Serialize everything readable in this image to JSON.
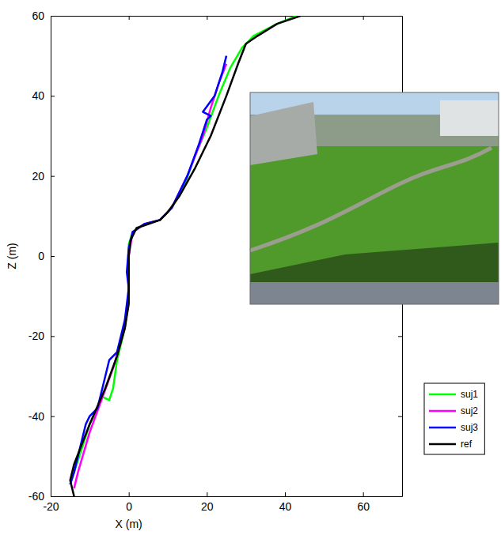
{
  "chart_data": {
    "type": "line",
    "x_label": "X (m)",
    "y_label": "Z (m)",
    "xlim": [
      -20,
      70
    ],
    "ylim": [
      -60,
      60
    ],
    "xticks": [
      -20,
      0,
      20,
      40,
      60
    ],
    "yticks": [
      -60,
      -40,
      -20,
      0,
      20,
      40,
      60
    ],
    "legend": "right",
    "series": [
      {
        "name": "suj1",
        "color": "#00ff00",
        "x": [
          -15,
          -14,
          -12,
          -10,
          -8,
          -7,
          -5,
          -4,
          -3,
          -1,
          0,
          0,
          0,
          1,
          4,
          8,
          11,
          14,
          17,
          20,
          23,
          26,
          29,
          32,
          38,
          43
        ],
        "values": [
          -57,
          -54,
          -48,
          -42,
          -38,
          -35,
          -36,
          -33,
          -26,
          -18,
          -10,
          -2,
          3,
          6,
          8,
          9,
          12,
          17,
          25,
          32,
          40,
          47,
          52,
          55,
          58,
          60
        ]
      },
      {
        "name": "suj2",
        "color": "#ff00ff",
        "x": [
          -14,
          -13,
          -10,
          -7,
          -4,
          -1,
          0,
          0,
          1,
          4,
          8,
          11,
          15,
          19,
          21,
          23,
          25
        ],
        "values": [
          -58,
          -54,
          -44,
          -36,
          -28,
          -18,
          -10,
          0,
          6,
          8,
          9,
          12,
          20,
          30,
          37,
          43,
          48
        ]
      },
      {
        "name": "suj3",
        "color": "#0000ff",
        "x": [
          -15,
          -14,
          -12,
          -11,
          -10,
          -8,
          -6,
          -5,
          -3,
          -1,
          0,
          -0.5,
          0,
          1,
          4,
          8,
          11,
          15,
          18,
          20,
          21,
          19,
          22,
          24,
          25
        ],
        "values": [
          -57,
          -54,
          -46,
          -42,
          -40,
          -38,
          -30,
          -26,
          -24,
          -16,
          -8,
          -4,
          2,
          6,
          8,
          9,
          12,
          20,
          28,
          34,
          35,
          36,
          40,
          46,
          50
        ]
      },
      {
        "name": "ref",
        "color": "#000000",
        "x": [
          -14,
          -15,
          -14,
          -10,
          -6,
          -3,
          -1,
          0,
          0,
          0,
          0.5,
          2,
          5,
          8,
          10,
          13,
          17,
          21,
          25,
          28,
          30,
          33,
          38,
          44
        ],
        "values": [
          -60,
          -56,
          -52,
          -42,
          -33,
          -25,
          -18,
          -12,
          -5,
          0,
          4,
          7,
          8,
          9,
          11,
          15,
          22,
          30,
          40,
          48,
          53,
          55,
          58,
          60
        ]
      }
    ]
  }
}
